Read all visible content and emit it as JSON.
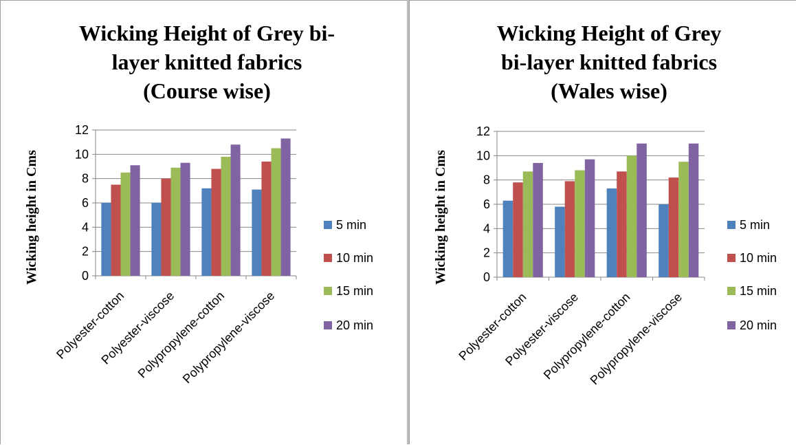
{
  "chart_data": [
    {
      "type": "bar",
      "title_lines": [
        "Wicking Height of Grey bi-",
        "layer knitted fabrics",
        "(Course wise)"
      ],
      "xlabel": "",
      "ylabel": "Wicking height in Cms",
      "ylim": [
        0,
        12
      ],
      "yticks": [
        "0",
        "2",
        "4",
        "6",
        "8",
        "10",
        "12"
      ],
      "grid": true,
      "legend_position": "right",
      "categories": [
        "Polyester-cotton",
        "Polyester-viscose",
        "Polypropylene-cotton",
        "Polypropylene-viscose"
      ],
      "series": [
        {
          "name": "5 min",
          "color": "#4F81BD",
          "values": [
            6.0,
            6.0,
            7.2,
            7.1
          ]
        },
        {
          "name": "10 min",
          "color": "#C0504D",
          "values": [
            7.5,
            8.0,
            8.8,
            9.4
          ]
        },
        {
          "name": "15 min",
          "color": "#9BBB59",
          "values": [
            8.5,
            8.9,
            9.8,
            10.5
          ]
        },
        {
          "name": "20 min",
          "color": "#8064A2",
          "values": [
            9.1,
            9.3,
            10.8,
            11.3
          ]
        }
      ]
    },
    {
      "type": "bar",
      "title_lines": [
        "Wicking Height of Grey",
        "bi-layer knitted fabrics",
        "(Wales wise)"
      ],
      "xlabel": "",
      "ylabel": "Wicking height in Cms",
      "ylim": [
        0,
        12
      ],
      "yticks": [
        "0",
        "2",
        "4",
        "6",
        "8",
        "10",
        "12"
      ],
      "grid": true,
      "legend_position": "right",
      "categories": [
        "Polyester-cotton",
        "Polyester-viscose",
        "Polypropylene-cotton",
        "Polypropylene-viscose"
      ],
      "series": [
        {
          "name": "5 min",
          "color": "#4F81BD",
          "values": [
            6.3,
            5.8,
            7.3,
            6.0
          ]
        },
        {
          "name": "10 min",
          "color": "#C0504D",
          "values": [
            7.8,
            7.9,
            8.7,
            8.2
          ]
        },
        {
          "name": "15 min",
          "color": "#9BBB59",
          "values": [
            8.7,
            8.8,
            10.0,
            9.5
          ]
        },
        {
          "name": "20 min",
          "color": "#8064A2",
          "values": [
            9.4,
            9.7,
            11.0,
            11.0
          ]
        }
      ]
    }
  ]
}
